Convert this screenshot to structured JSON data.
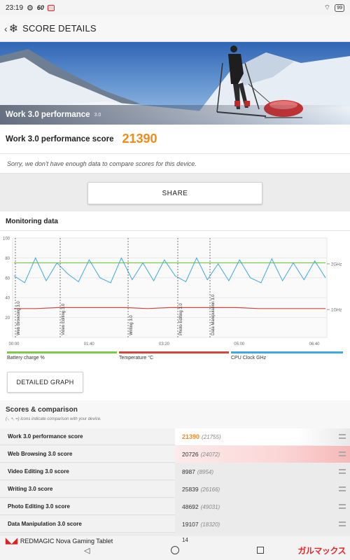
{
  "status_bar": {
    "time": "23:19",
    "net_speed": "60",
    "battery": "99",
    "icons": [
      "gear-icon",
      "notification-icon",
      "wifi-icon",
      "battery-icon"
    ]
  },
  "app_bar": {
    "title": "SCORE DETAILS",
    "icons": [
      "back-chevron-icon",
      "snowflake-icon"
    ]
  },
  "hero": {
    "label": "Work 3.0 performance",
    "version": "3.0"
  },
  "score": {
    "label": "Work 3.0 performance score",
    "value": "21390"
  },
  "compare_message": "Sorry, we don't have enough data to compare scores for this device.",
  "share_label": "SHARE",
  "monitoring": {
    "title": "Monitoring data",
    "legend": [
      {
        "label": "Battery charge %",
        "color": "#7cc94a"
      },
      {
        "label": "Temperature °C",
        "color": "#d0473d"
      },
      {
        "label": "CPU Clock GHz",
        "color": "#3fa9de"
      }
    ],
    "detail_button": "DETAILED GRAPH"
  },
  "chart_data": {
    "type": "line",
    "y_ticks": [
      "100",
      "80",
      "60",
      "40",
      "20"
    ],
    "ylim": [
      0,
      100
    ],
    "x_ticks": [
      "00:00",
      "01:40",
      "03:20",
      "05:00",
      "06:40"
    ],
    "right_ticks": [
      "2GHz",
      "1GHz"
    ],
    "markers": [
      "Web Browsing 3.0",
      "Video Editing 3.0",
      "Writing 3.0",
      "Photo Editing 3.0",
      "Data Manipulation 3.0"
    ],
    "series": [
      {
        "name": "Battery charge %",
        "values": [
          75,
          75,
          75,
          75,
          75,
          75,
          75,
          75,
          75,
          75,
          75,
          75,
          75,
          75,
          75
        ],
        "color": "#7cc94a"
      },
      {
        "name": "Temperature °C",
        "values": [
          29,
          29,
          30,
          30,
          30,
          30,
          29,
          30,
          30,
          30,
          30,
          29,
          29,
          29,
          29
        ],
        "color": "#d0473d"
      },
      {
        "name": "CPU Clock GHz",
        "values": [
          62,
          55,
          80,
          57,
          75,
          64,
          56,
          78,
          60,
          55,
          80,
          58,
          75,
          57,
          78,
          62,
          56,
          80,
          58,
          74,
          57,
          78,
          60,
          55,
          79,
          57,
          75,
          58,
          77,
          60
        ],
        "color": "#3fa9de"
      }
    ]
  },
  "scores": {
    "title": "Scores & comparison",
    "subtitle": "(-, +, =) icons indicate comparison with your device.",
    "rows": [
      {
        "name": "Work 3.0 performance score",
        "value": "21390",
        "sub": "(21755)"
      },
      {
        "name": "Web Browsing 3.0 score",
        "value": "20726",
        "sub": "(24072)"
      },
      {
        "name": "Video Editing 3.0 score",
        "value": "8987",
        "sub": "(8954)"
      },
      {
        "name": "Writing 3.0 score",
        "value": "25839",
        "sub": "(26166)"
      },
      {
        "name": "Photo Editing 3.0 score",
        "value": "48692",
        "sub": "(49031)"
      },
      {
        "name": "Data Manipulation 3.0 score",
        "value": "19107",
        "sub": "(18320)"
      }
    ],
    "peek_value": "14"
  },
  "nav": {
    "caption": "REDMAGIC Nova Gaming Tablet",
    "watermark": "ガルマックス"
  }
}
